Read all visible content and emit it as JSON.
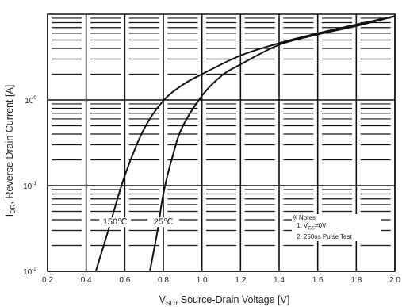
{
  "chart_data": {
    "type": "line",
    "xlabel": "V_SD, Source-Drain Voltage [V]",
    "xlabel_main": "V",
    "xlabel_sub": "SD",
    "xlabel_rest": ", Source-Drain Voltage [V]",
    "ylabel_main": "I",
    "ylabel_sub": "DR",
    "ylabel_rest": ", Reverse Drain Current [A]",
    "x_scale": "linear",
    "y_scale": "log",
    "xlim": [
      0.2,
      2.0
    ],
    "ylim": [
      0.01,
      10
    ],
    "x_ticks": [
      "0.2",
      "0.4",
      "0.6",
      "0.8",
      "1.0",
      "1.2",
      "1.4",
      "1.6",
      "1.8",
      "2.0"
    ],
    "y_ticks": [
      {
        "value": 0.01,
        "base": "10",
        "exp": "-2"
      },
      {
        "value": 0.1,
        "base": "10",
        "exp": "-1"
      },
      {
        "value": 1,
        "base": "10",
        "exp": "0"
      }
    ],
    "grid": true,
    "series": [
      {
        "name": "150°C",
        "label": "150℃",
        "x": [
          0.45,
          0.52,
          0.6,
          0.7,
          0.8,
          0.9,
          1.0,
          1.2,
          1.4,
          1.6,
          1.8,
          2.0
        ],
        "y": [
          0.01,
          0.033,
          0.13,
          0.46,
          0.98,
          1.5,
          2.0,
          3.3,
          4.6,
          6.0,
          7.6,
          9.5
        ]
      },
      {
        "name": "25°C",
        "label": "25℃",
        "x": [
          0.73,
          0.77,
          0.8,
          0.85,
          0.9,
          1.0,
          1.1,
          1.2,
          1.4,
          1.6,
          1.8,
          2.0
        ],
        "y": [
          0.01,
          0.03,
          0.08,
          0.23,
          0.49,
          1.12,
          1.9,
          2.6,
          4.4,
          5.8,
          7.3,
          9.5
        ]
      }
    ],
    "notes": {
      "title": "※ Notes",
      "line1_main": "1. V",
      "line1_sub": "GS",
      "line1_rest": "=0V",
      "line2": "2. 250us Pulse Test"
    }
  }
}
